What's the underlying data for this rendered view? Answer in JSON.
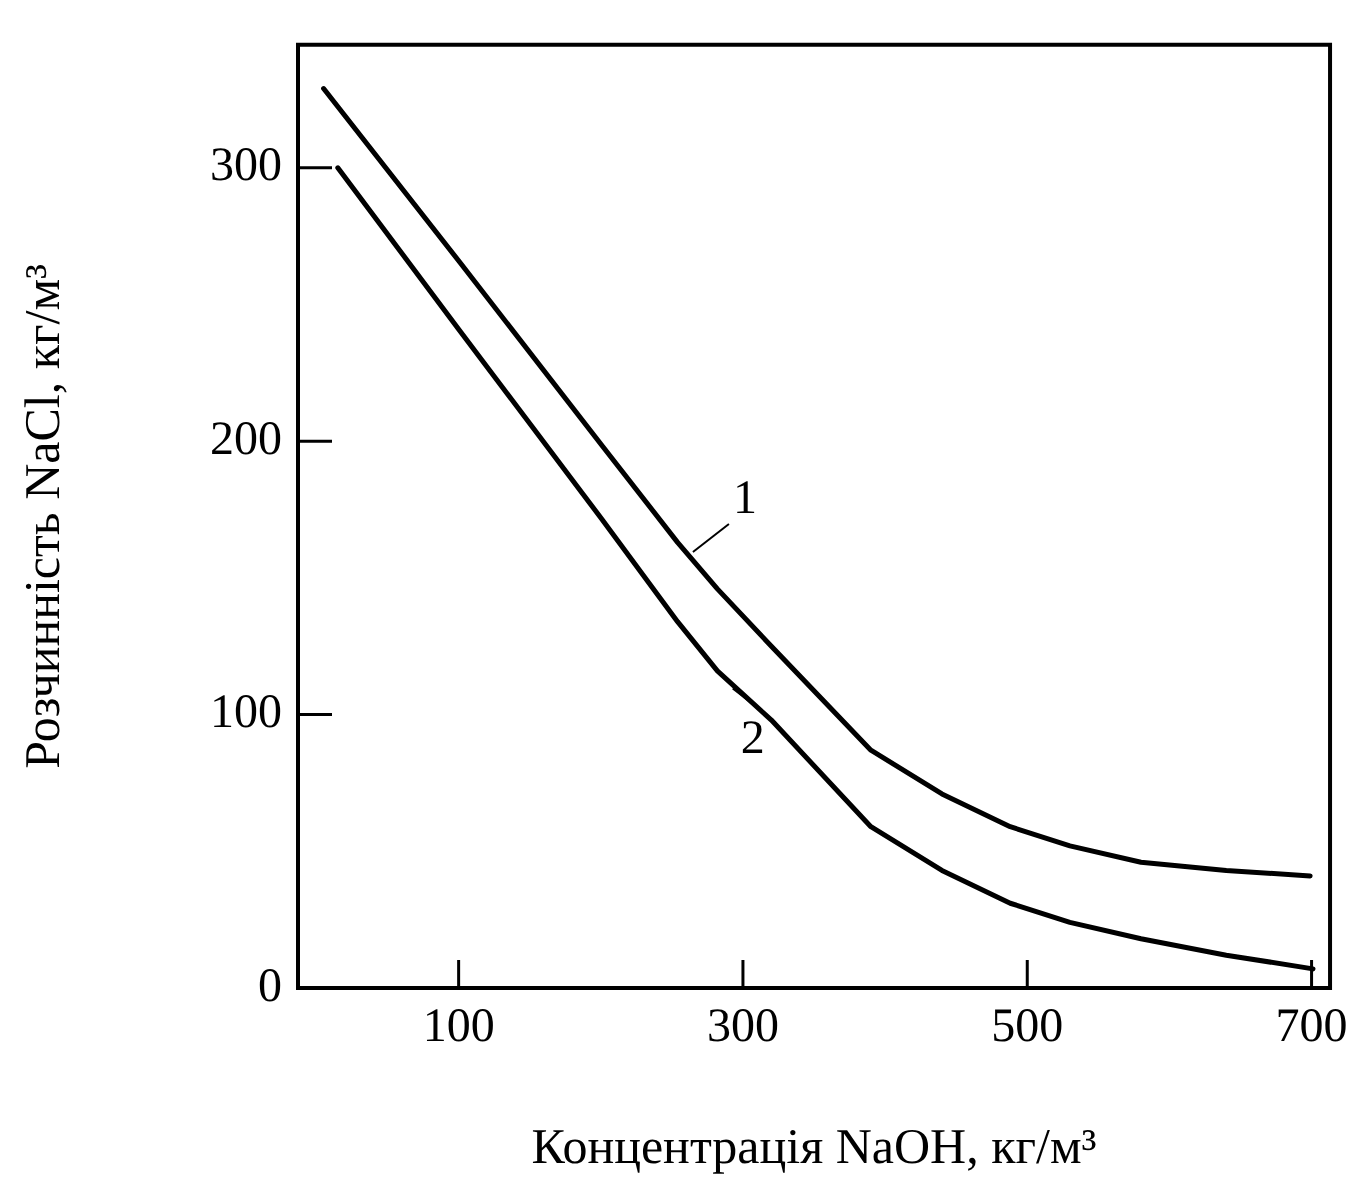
{
  "chart_data": {
    "type": "line",
    "xlabel": "Концентрація NaOH, кг/м³",
    "ylabel": "Розчинність NaCl, кг/м³",
    "xlim": [
      -13,
      713
    ],
    "xticks": [
      100,
      300,
      500,
      700
    ],
    "ylim": [
      0,
      345
    ],
    "yticks": [
      0,
      100,
      200,
      300
    ],
    "grid": false,
    "legend": false,
    "marker": "none",
    "line_style": "solid",
    "series": [
      {
        "color": "#000000",
        "x": [
          5,
          100,
          200,
          254,
          282,
          320,
          390,
          440,
          488,
          530,
          580,
          640,
          699
        ],
        "values": [
          329,
          266,
          199,
          163,
          146,
          125,
          87,
          71,
          59,
          52,
          46,
          43,
          41
        ]
      },
      {
        "color": "#000000",
        "x": [
          15,
          100,
          200,
          254,
          282,
          320,
          390,
          440,
          488,
          530,
          580,
          640,
          701
        ],
        "values": [
          300,
          241,
          172,
          134,
          116,
          98,
          59,
          43,
          31,
          24,
          18,
          12,
          7
        ]
      }
    ],
    "annotations": [
      {
        "text": "1",
        "x": 262,
        "y": 158
      },
      {
        "text": "2",
        "x": 290,
        "y": 111
      }
    ]
  }
}
